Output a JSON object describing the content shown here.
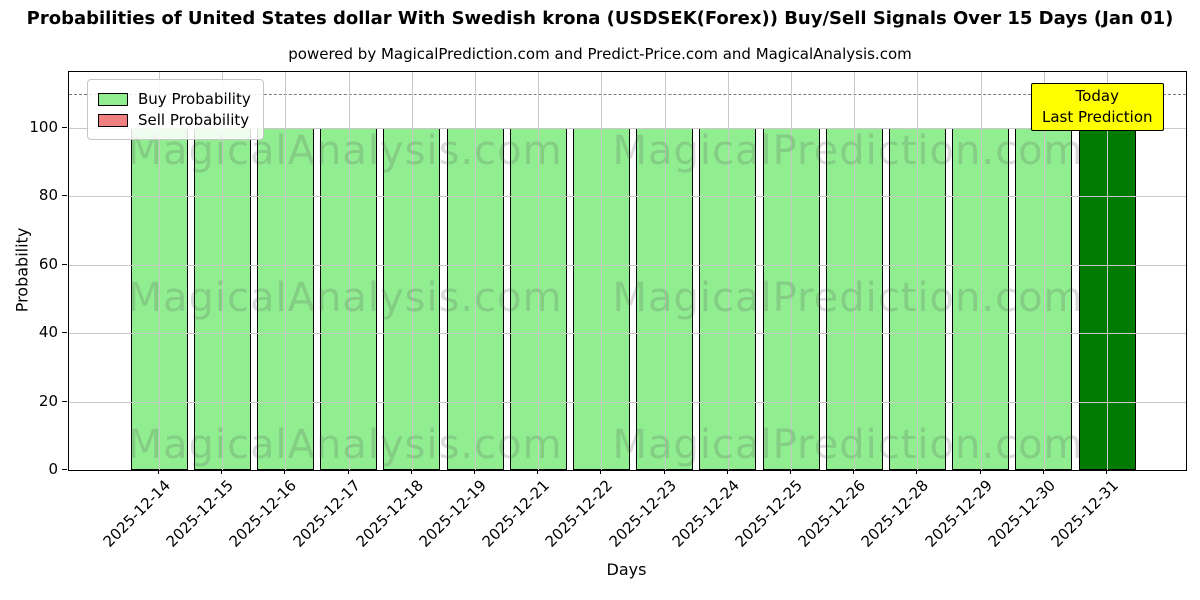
{
  "chart_data": {
    "type": "bar",
    "title": "Probabilities of United States dollar With Swedish krona (USDSEK(Forex)) Buy/Sell Signals Over 15 Days (Jan 01)",
    "subtitle": "powered by MagicalPrediction.com and Predict-Price.com and MagicalAnalysis.com",
    "xlabel": "Days",
    "ylabel": "Probability",
    "categories": [
      "2025-12-14",
      "2025-12-15",
      "2025-12-16",
      "2025-12-17",
      "2025-12-18",
      "2025-12-19",
      "2025-12-21",
      "2025-12-22",
      "2025-12-23",
      "2025-12-24",
      "2025-12-25",
      "2025-12-26",
      "2025-12-28",
      "2025-12-29",
      "2025-12-30",
      "2025-12-31"
    ],
    "series": [
      {
        "name": "Buy Probability",
        "color": "#90ee90",
        "values": [
          100,
          100,
          100,
          100,
          100,
          100,
          100,
          100,
          100,
          100,
          100,
          100,
          100,
          100,
          100,
          100
        ]
      },
      {
        "name": "Sell Probability",
        "color": "#f08080",
        "values": [
          0,
          0,
          0,
          0,
          0,
          0,
          0,
          0,
          0,
          0,
          0,
          0,
          0,
          0,
          0,
          0
        ]
      }
    ],
    "today_index": 15,
    "today_color": "#007a00",
    "bar_edge_color": "#000000",
    "yticks": [
      0,
      20,
      40,
      60,
      80,
      100
    ],
    "ylim": [
      0,
      116.4
    ],
    "dashed_line_y": 110,
    "grid": true,
    "legend_position": "upper-left",
    "annotation": {
      "lines": [
        "Today",
        "Last Prediction"
      ],
      "bg_color": "#ffff00",
      "border_color": "#000000"
    },
    "watermarks": [
      "MagicalAnalysis.com",
      "MagicalPrediction.com"
    ]
  }
}
